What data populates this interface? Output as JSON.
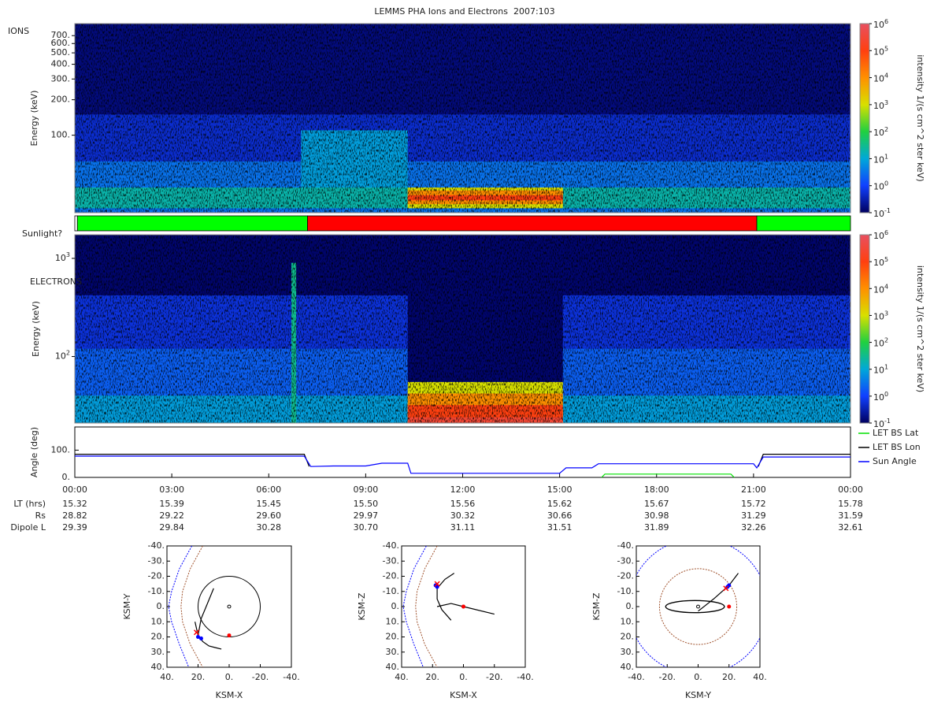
{
  "title": "LEMMS PHA Ions and Electrons  2007:103",
  "chart_data": [
    {
      "type": "spectrogram",
      "label": "IONS",
      "ylabel": "Energy (keV)",
      "yscale": "log",
      "xlim": [
        0,
        24
      ],
      "ylim": [
        22,
        885
      ],
      "yticks": [
        {
          "value": 100,
          "label": "100."
        },
        {
          "value": 200,
          "label": "200."
        },
        {
          "value": 300,
          "label": "300."
        },
        {
          "value": 400,
          "label": "400."
        },
        {
          "value": 500,
          "label": "500."
        },
        {
          "value": 600,
          "label": "600."
        },
        {
          "value": 700,
          "label": "700."
        }
      ],
      "colorbar": {
        "label": "intensity 1/(s cm^2 ster keV)",
        "lim": [
          0.1,
          1000000
        ],
        "ticks": [
          {
            "value": 1000000,
            "label": "10",
            "exponent": "6"
          },
          {
            "value": 100000,
            "label": "10",
            "exponent": "5"
          },
          {
            "value": 10000,
            "label": "10",
            "exponent": "4"
          },
          {
            "value": 1000,
            "label": "10",
            "exponent": "3"
          },
          {
            "value": 100,
            "label": "10",
            "exponent": "2"
          },
          {
            "value": 10,
            "label": "10",
            "exponent": "1"
          },
          {
            "value": 1,
            "label": "10",
            "exponent": "0"
          },
          {
            "value": 0.1,
            "label": "10",
            "exponent": "-1"
          }
        ]
      },
      "bands": [
        {
          "start": 0,
          "end": 24,
          "energy": [
            22,
            885
          ],
          "intensity": 0.15
        },
        {
          "start": 0,
          "end": 24,
          "energy": [
            22,
            150
          ],
          "intensity": 0.5
        },
        {
          "start": 0,
          "end": 24,
          "energy": [
            22,
            60
          ],
          "intensity": 3
        },
        {
          "start": 0,
          "end": 24,
          "energy": [
            24,
            36
          ],
          "intensity": 20
        },
        {
          "start": 7,
          "end": 10.3,
          "energy": [
            36,
            110
          ],
          "intensity": 8
        },
        {
          "start": 10.3,
          "end": 15.1,
          "energy": [
            24,
            36
          ],
          "intensity": 1000
        },
        {
          "start": 10.3,
          "end": 15.1,
          "energy": [
            26,
            34
          ],
          "intensity": 10000
        },
        {
          "start": 10.3,
          "end": 15.1,
          "energy": [
            28,
            31
          ],
          "intensity": 100000
        }
      ]
    },
    {
      "type": "timeline",
      "label": "Sunlight?",
      "xlim": [
        0,
        24
      ],
      "segments": [
        {
          "start": 0,
          "end": 0.08,
          "color": "#ffffff"
        },
        {
          "start": 0.08,
          "end": 7.2,
          "color": "#00ff00"
        },
        {
          "start": 7.2,
          "end": 21.1,
          "color": "#ff0000"
        },
        {
          "start": 21.1,
          "end": 24,
          "color": "#00ff00"
        }
      ]
    },
    {
      "type": "spectrogram",
      "label": "ELECTRONS",
      "ylabel": "Energy (keV)",
      "yscale": "log",
      "xlim": [
        0,
        24
      ],
      "ylim": [
        21,
        1740
      ],
      "yticks": [
        {
          "value": 1000,
          "label": "10",
          "exponent": "3"
        },
        {
          "value": 100,
          "label": "10",
          "exponent": "2"
        }
      ],
      "colorbar": {
        "label": "intensity 1/(s cm^2 ster keV)",
        "lim": [
          0.1,
          1000000
        ],
        "ticks": [
          {
            "value": 1000000,
            "label": "10",
            "exponent": "6"
          },
          {
            "value": 100000,
            "label": "10",
            "exponent": "5"
          },
          {
            "value": 10000,
            "label": "10",
            "exponent": "4"
          },
          {
            "value": 1000,
            "label": "10",
            "exponent": "3"
          },
          {
            "value": 100,
            "label": "10",
            "exponent": "2"
          },
          {
            "value": 10,
            "label": "10",
            "exponent": "1"
          },
          {
            "value": 1,
            "label": "10",
            "exponent": "0"
          },
          {
            "value": 0.1,
            "label": "10",
            "exponent": "-1"
          }
        ]
      },
      "bands": [
        {
          "start": 0,
          "end": 24,
          "energy": [
            21,
            1740
          ],
          "intensity": 0.12
        },
        {
          "start": 0,
          "end": 24,
          "energy": [
            21,
            420
          ],
          "intensity": 0.6
        },
        {
          "start": 0,
          "end": 24,
          "energy": [
            21,
            120
          ],
          "intensity": 2
        },
        {
          "start": 0,
          "end": 24,
          "energy": [
            21,
            40
          ],
          "intensity": 8
        },
        {
          "start": 6.7,
          "end": 6.85,
          "energy": [
            21,
            900
          ],
          "intensity": 30
        },
        {
          "start": 10.3,
          "end": 15.1,
          "energy": [
            55,
            420
          ],
          "intensity": 0.12
        },
        {
          "start": 10.3,
          "end": 15.1,
          "energy": [
            21,
            55
          ],
          "intensity": 1000
        },
        {
          "start": 10.3,
          "end": 15.1,
          "energy": [
            21,
            42
          ],
          "intensity": 10000
        },
        {
          "start": 10.3,
          "end": 15.1,
          "energy": [
            21,
            32
          ],
          "intensity": 100000
        },
        {
          "start": 10.3,
          "end": 15.1,
          "energy": [
            21,
            24
          ],
          "intensity": 300000
        }
      ]
    },
    {
      "type": "line",
      "ylabel": "Angle (deg)",
      "xlim": [
        0,
        24
      ],
      "ylim": [
        0,
        185
      ],
      "legend": "right",
      "yticks": [
        {
          "value": 0,
          "label": "0."
        },
        {
          "value": 100,
          "label": "100."
        }
      ],
      "xticks": [
        {
          "value": 0,
          "label": "00:00"
        },
        {
          "value": 3,
          "label": "03:00"
        },
        {
          "value": 6,
          "label": "06:00"
        },
        {
          "value": 9,
          "label": "09:00"
        },
        {
          "value": 12,
          "label": "12:00"
        },
        {
          "value": 15,
          "label": "15:00"
        },
        {
          "value": 18,
          "label": "18:00"
        },
        {
          "value": 21,
          "label": "21:00"
        },
        {
          "value": 24,
          "label": "00:00"
        }
      ],
      "series": [
        {
          "name": "LET BS Lat",
          "color": "#00e000",
          "x": [
            16.3,
            16.4,
            20.3,
            20.4
          ],
          "values": [
            0,
            12,
            12,
            0
          ]
        },
        {
          "name": "LET BS Lon",
          "color": "#000000",
          "x": [
            0,
            7.1,
            7.25,
            12,
            21.15,
            21.3,
            24
          ],
          "values": [
            85,
            85,
            40,
            null,
            40,
            85,
            85
          ]
        },
        {
          "name": "Sun Angle",
          "color": "#0000ff",
          "x": [
            0,
            7.1,
            7.3,
            8,
            9,
            9.5,
            10.3,
            10.4,
            15,
            15.2,
            16,
            16.2,
            21,
            21.1,
            21.3,
            24
          ],
          "values": [
            78,
            78,
            40,
            42,
            42,
            52,
            52,
            15,
            15,
            35,
            35,
            50,
            50,
            35,
            75,
            75
          ]
        }
      ],
      "ephemeris": [
        {
          "label": "LT (hrs)",
          "values": [
            "15.32",
            "15.39",
            "15.45",
            "15.50",
            "15.56",
            "15.62",
            "15.67",
            "15.72",
            "15.78"
          ]
        },
        {
          "label": "Rs",
          "values": [
            "28.82",
            "29.22",
            "29.60",
            "29.97",
            "30.32",
            "30.66",
            "30.98",
            "31.29",
            "31.59"
          ]
        },
        {
          "label": "Dipole L",
          "values": [
            "29.39",
            "29.84",
            "30.28",
            "30.70",
            "31.11",
            "31.51",
            "31.89",
            "32.26",
            "32.61"
          ]
        }
      ]
    },
    {
      "type": "orbit",
      "xlabel": "KSM-X",
      "ylabel": "KSM-Y",
      "xlim": [
        40,
        -40
      ],
      "ylim": [
        40,
        -40
      ],
      "xticks": [
        {
          "value": 40,
          "label": "40."
        },
        {
          "value": 20,
          "label": "20."
        },
        {
          "value": 0,
          "label": "0."
        },
        {
          "value": -20,
          "label": "-20."
        },
        {
          "value": -40,
          "label": "-40."
        }
      ],
      "yticks": [
        {
          "value": -40,
          "label": "-40."
        },
        {
          "value": -30,
          "label": "-30."
        },
        {
          "value": -20,
          "label": "-20."
        },
        {
          "value": -10,
          "label": "-10."
        },
        {
          "value": 0,
          "label": "0."
        },
        {
          "value": 10,
          "label": "10."
        },
        {
          "value": 20,
          "label": "20."
        },
        {
          "value": 30,
          "label": "30."
        },
        {
          "value": 40,
          "label": "40."
        }
      ],
      "lines": [
        {
          "color": "#0000ff",
          "dash": true,
          "x": [
            24,
            32,
            37,
            39,
            37,
            32,
            26
          ],
          "y": [
            -40,
            -25,
            -10,
            0,
            10,
            25,
            40
          ]
        },
        {
          "color": "#a0522d",
          "dash": true,
          "x": [
            17,
            25,
            30,
            31,
            30,
            25,
            17
          ],
          "y": [
            -40,
            -25,
            -10,
            0,
            10,
            25,
            40
          ]
        },
        {
          "color": "#000000",
          "dash": false,
          "x": [
            22,
            20,
            17,
            13,
            9,
            5
          ],
          "y": [
            10,
            19,
            23,
            26,
            27,
            28
          ]
        },
        {
          "color": "#000000",
          "dash": false,
          "x": [
            20,
            18,
            14,
            10
          ],
          "y": [
            19,
            8,
            -2,
            -12
          ]
        }
      ],
      "circles": [
        {
          "cx": 0,
          "cy": 0,
          "r": 20,
          "color": "#000000",
          "dash": false
        },
        {
          "cx": 0,
          "cy": 0,
          "r": 1,
          "color": "#000000",
          "dash": false
        }
      ],
      "ellipses": [],
      "markers": [
        {
          "x": 20,
          "y": 20,
          "color": "#0000ff",
          "shape": "dot"
        },
        {
          "x": 18,
          "y": 21,
          "color": "#0000ff",
          "shape": "dot"
        },
        {
          "x": 21,
          "y": 17,
          "color": "#ff0000",
          "shape": "x"
        },
        {
          "x": 0,
          "y": 19,
          "color": "#ff0000",
          "shape": "dot"
        }
      ]
    },
    {
      "type": "orbit",
      "xlabel": "KSM-X",
      "ylabel": "KSM-Z",
      "xlim": [
        40,
        -40
      ],
      "ylim": [
        40,
        -40
      ],
      "xticks": [
        {
          "value": 40,
          "label": "40."
        },
        {
          "value": 20,
          "label": "20."
        },
        {
          "value": 0,
          "label": "0."
        },
        {
          "value": -20,
          "label": "-20."
        },
        {
          "value": -40,
          "label": "-40."
        }
      ],
      "yticks": [
        {
          "value": -40,
          "label": "-40."
        },
        {
          "value": -30,
          "label": "-30."
        },
        {
          "value": -20,
          "label": "-20."
        },
        {
          "value": -10,
          "label": "-10."
        },
        {
          "value": 0,
          "label": "0."
        },
        {
          "value": 10,
          "label": "10."
        },
        {
          "value": 20,
          "label": "20."
        },
        {
          "value": 30,
          "label": "30."
        },
        {
          "value": 40,
          "label": "40."
        }
      ],
      "lines": [
        {
          "color": "#0000ff",
          "dash": true,
          "x": [
            24,
            32,
            37,
            39,
            37,
            32,
            26
          ],
          "y": [
            -40,
            -25,
            -10,
            0,
            10,
            25,
            40
          ]
        },
        {
          "color": "#a0522d",
          "dash": true,
          "x": [
            17,
            25,
            30,
            31,
            30,
            25,
            17
          ],
          "y": [
            -40,
            -25,
            -10,
            0,
            10,
            25,
            40
          ]
        },
        {
          "color": "#000000",
          "dash": false,
          "x": [
            17,
            8,
            0,
            -20
          ],
          "y": [
            0,
            -2,
            0,
            5
          ]
        },
        {
          "color": "#000000",
          "dash": false,
          "x": [
            6,
            12,
            17,
            17,
            14,
            8
          ],
          "y": [
            -22,
            -18,
            -12,
            -5,
            2,
            9
          ]
        }
      ],
      "circles": [
        {
          "cx": 0,
          "cy": 0,
          "r": 1,
          "color": "#000000",
          "dash": false
        }
      ],
      "ellipses": [],
      "markers": [
        {
          "x": 17,
          "y": -13,
          "color": "#0000ff",
          "shape": "dot"
        },
        {
          "x": 18,
          "y": -14,
          "color": "#0000ff",
          "shape": "dot"
        },
        {
          "x": 17,
          "y": -15,
          "color": "#ff0000",
          "shape": "x"
        },
        {
          "x": 0,
          "y": 0,
          "color": "#ff0000",
          "shape": "dot"
        }
      ]
    },
    {
      "type": "orbit",
      "xlabel": "KSM-Y",
      "ylabel": "KSM-Z",
      "xlim": [
        -40,
        40
      ],
      "ylim": [
        40,
        -40
      ],
      "xticks": [
        {
          "value": -40,
          "label": "-40."
        },
        {
          "value": -20,
          "label": "-20."
        },
        {
          "value": 0,
          "label": "0."
        },
        {
          "value": 20,
          "label": "20."
        },
        {
          "value": 40,
          "label": "40."
        }
      ],
      "yticks": [
        {
          "value": -40,
          "label": "-40."
        },
        {
          "value": -30,
          "label": "-30."
        },
        {
          "value": -20,
          "label": "-20."
        },
        {
          "value": -10,
          "label": "-10."
        },
        {
          "value": 0,
          "label": "0."
        },
        {
          "value": 10,
          "label": "10."
        },
        {
          "value": 20,
          "label": "20."
        },
        {
          "value": 30,
          "label": "30."
        },
        {
          "value": 40,
          "label": "40."
        }
      ],
      "lines": [
        {
          "color": "#000000",
          "dash": false,
          "x": [
            0,
            10,
            20,
            26
          ],
          "y": [
            3,
            -5,
            -14,
            -22
          ]
        }
      ],
      "circles": [
        {
          "cx": 0,
          "cy": 0,
          "r": 25,
          "color": "#a0522d",
          "dash": true
        },
        {
          "cx": 0,
          "cy": 0,
          "r": 45,
          "color": "#0000ff",
          "dash": true
        },
        {
          "cx": 0,
          "cy": 0,
          "r": 1,
          "color": "#000000",
          "dash": false
        }
      ],
      "ellipses": [
        {
          "cx": -2,
          "cy": 0,
          "rx": 19,
          "ry": 4,
          "color": "#000000"
        }
      ],
      "markers": [
        {
          "x": 20,
          "y": -14,
          "color": "#0000ff",
          "shape": "dot"
        },
        {
          "x": 19,
          "y": -13,
          "color": "#0000ff",
          "shape": "dot"
        },
        {
          "x": 18,
          "y": -12,
          "color": "#ff0000",
          "shape": "x"
        },
        {
          "x": 20,
          "y": 0,
          "color": "#ff0000",
          "shape": "dot"
        }
      ]
    }
  ]
}
